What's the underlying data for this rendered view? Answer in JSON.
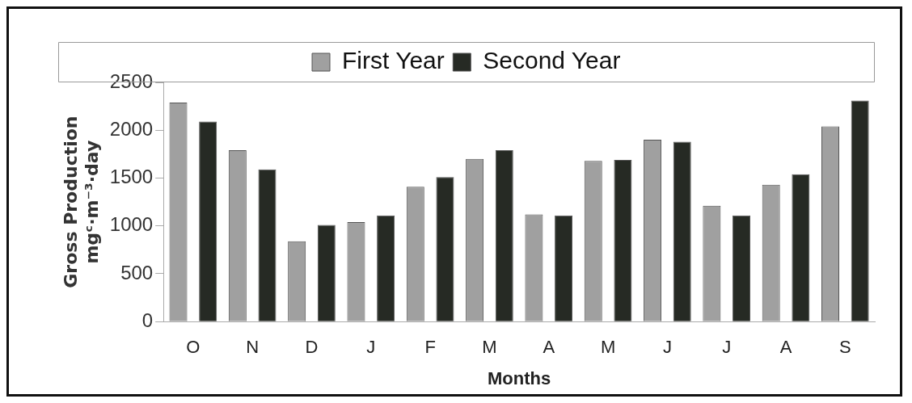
{
  "chart_data": {
    "type": "bar",
    "xlabel": "Months",
    "ylabel": "Gross Production\nmgᶜ·m⁻³·day",
    "categories": [
      "O",
      "N",
      "D",
      "J",
      "F",
      "M",
      "A",
      "M",
      "J",
      "J",
      "A",
      "S"
    ],
    "series": [
      {
        "name": "First Year",
        "color": "#a0a0a0",
        "values": [
          2290,
          1790,
          840,
          1040,
          1410,
          1700,
          1120,
          1680,
          1900,
          1210,
          1430,
          2040
        ]
      },
      {
        "name": "Second Year",
        "color": "#262a24",
        "values": [
          2090,
          1590,
          1010,
          1110,
          1510,
          1790,
          1110,
          1690,
          1880,
          1110,
          1540,
          2310
        ]
      }
    ],
    "ylim": [
      0,
      2500
    ],
    "yticks": [
      0,
      500,
      1000,
      1500,
      2000,
      2500
    ],
    "grid": false,
    "legend": "top"
  }
}
